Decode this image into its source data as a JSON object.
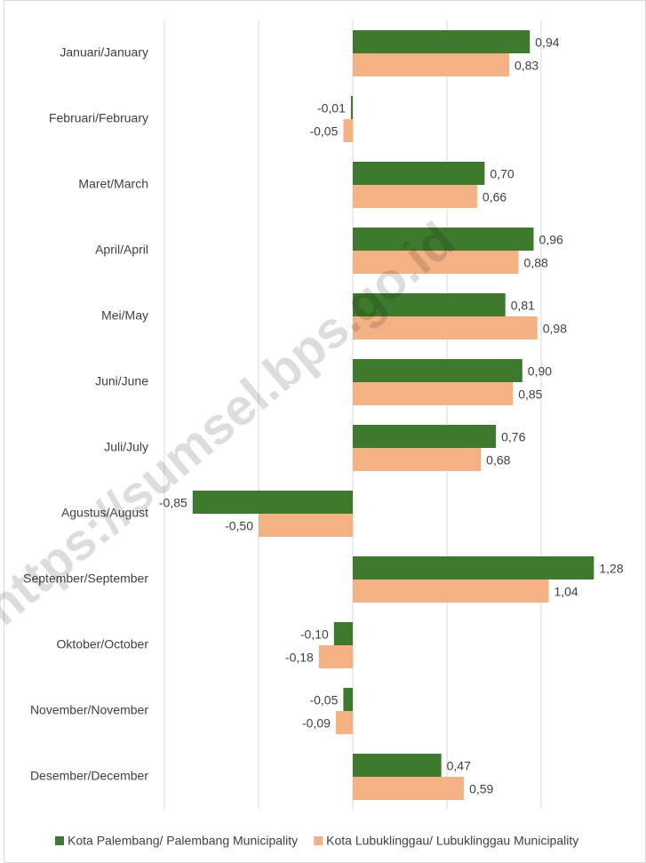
{
  "chart_data": {
    "type": "hbar",
    "categories": [
      "Januari/January",
      "Februari/February",
      "Maret/March",
      "April/April",
      "Mei/May",
      "Juni/June",
      "Juli/July",
      "Agustus/August",
      "September/September",
      "Oktober/October",
      "November/November",
      "Desember/December"
    ],
    "series": [
      {
        "name": "Kota Palembang/ Palembang Municipality",
        "color": "#3e7a2e",
        "values": [
          0.94,
          -0.01,
          0.7,
          0.96,
          0.81,
          0.9,
          0.76,
          -0.85,
          1.28,
          -0.1,
          -0.05,
          0.47
        ],
        "value_labels": [
          "0,94",
          "-0,01",
          "0,70",
          "0,96",
          "0,81",
          "0,90",
          "0,76",
          "-0,85",
          "1,28",
          "-0,10",
          "-0,05",
          "0,47"
        ]
      },
      {
        "name": "Kota Lubuklinggau/ Lubuklinggau Municipality",
        "color": "#f4b183",
        "values": [
          0.83,
          -0.05,
          0.66,
          0.88,
          0.98,
          0.85,
          0.68,
          -0.5,
          1.04,
          -0.18,
          -0.09,
          0.59
        ],
        "value_labels": [
          "0,83",
          "-0,05",
          "0,66",
          "0,88",
          "0,98",
          "0,85",
          "0,68",
          "-0,50",
          "1,04",
          "-0,18",
          "-0,09",
          "0,59"
        ]
      }
    ],
    "xlim": [
      -1,
      1.5
    ],
    "xgrid": [
      -1,
      -0.5,
      0,
      0.5,
      1
    ],
    "grid": true,
    "legend": "bottom",
    "watermark": "https://sumsel.bps.go.id"
  }
}
